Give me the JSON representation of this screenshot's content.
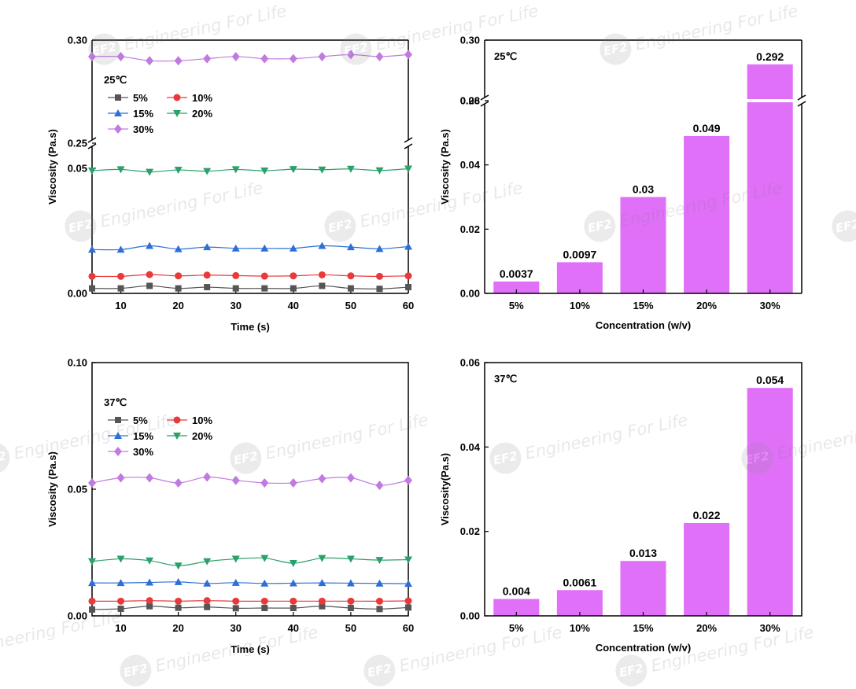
{
  "watermark": {
    "logo": "EF2",
    "text": "Engineering For Life"
  },
  "chart_data": [
    {
      "id": "A",
      "type": "line",
      "label": "25℃",
      "xlabel": "Time (s)",
      "ylabel": "Viscosity (Pa.s)",
      "xlim": [
        5,
        60
      ],
      "x_ticks": [
        "10",
        "20",
        "30",
        "40",
        "50",
        "60"
      ],
      "y_axis_break": {
        "lower_range": [
          0,
          0.06
        ],
        "upper_range": [
          0.25,
          0.3
        ]
      },
      "y_ticks": [
        "0.00",
        "0.05",
        "0.25",
        "0.30"
      ],
      "x": [
        5,
        10,
        15,
        20,
        25,
        30,
        35,
        40,
        45,
        50,
        55,
        60
      ],
      "series": [
        {
          "name": "5%",
          "color": "#555555",
          "marker": "square",
          "values": [
            0.002,
            0.002,
            0.003,
            0.002,
            0.0025,
            0.002,
            0.002,
            0.002,
            0.003,
            0.002,
            0.0018,
            0.0025
          ]
        },
        {
          "name": "10%",
          "color": "#e83a3a",
          "marker": "circle",
          "values": [
            0.0068,
            0.0068,
            0.0075,
            0.007,
            0.0073,
            0.0071,
            0.0069,
            0.007,
            0.0074,
            0.007,
            0.0068,
            0.007
          ]
        },
        {
          "name": "15%",
          "color": "#2d6fd6",
          "marker": "triangle-up",
          "values": [
            0.0175,
            0.0175,
            0.019,
            0.0177,
            0.0185,
            0.018,
            0.018,
            0.018,
            0.019,
            0.0185,
            0.0178,
            0.0187
          ]
        },
        {
          "name": "20%",
          "color": "#2aa06a",
          "marker": "triangle-down",
          "values": [
            0.049,
            0.0495,
            0.0485,
            0.0493,
            0.0488,
            0.0495,
            0.049,
            0.0496,
            0.0494,
            0.0497,
            0.0491,
            0.0498
          ]
        },
        {
          "name": "30%",
          "color": "#c07ae0",
          "marker": "diamond",
          "values": [
            0.292,
            0.292,
            0.29,
            0.29,
            0.291,
            0.292,
            0.291,
            0.291,
            0.292,
            0.293,
            0.292,
            0.293
          ]
        }
      ]
    },
    {
      "id": "B",
      "type": "bar",
      "label": "25℃",
      "xlabel": "Concentration (w/v)",
      "ylabel": "Viscosity (Pa.s)",
      "categories": [
        "5%",
        "10%",
        "15%",
        "20%",
        "30%"
      ],
      "values": [
        0.0037,
        0.0097,
        0.03,
        0.049,
        0.292
      ],
      "value_labels": [
        "0.0037",
        "0.0097",
        "0.03",
        "0.049",
        "0.292"
      ],
      "color": "#e070f8",
      "y_axis_break": {
        "lower_range": [
          0,
          0.06
        ],
        "upper_range": [
          0.28,
          0.3
        ]
      },
      "y_ticks": [
        "0.00",
        "0.02",
        "0.04",
        "0.06",
        "0.28",
        "0.30"
      ]
    },
    {
      "id": "C",
      "type": "line",
      "label": "37℃",
      "xlabel": "Time (s)",
      "ylabel": "Viscosity (Pa.s)",
      "xlim": [
        5,
        60
      ],
      "ylim": [
        0,
        0.1
      ],
      "x_ticks": [
        "10",
        "20",
        "30",
        "40",
        "50",
        "60"
      ],
      "y_ticks": [
        "0.00",
        "0.05",
        "0.10"
      ],
      "x": [
        5,
        10,
        15,
        20,
        25,
        30,
        35,
        40,
        45,
        50,
        55,
        60
      ],
      "series": [
        {
          "name": "5%",
          "color": "#555555",
          "marker": "square",
          "values": [
            0.0025,
            0.0028,
            0.0038,
            0.0032,
            0.0035,
            0.003,
            0.0031,
            0.0031,
            0.0038,
            0.0031,
            0.0027,
            0.0033
          ]
        },
        {
          "name": "10%",
          "color": "#e83a3a",
          "marker": "circle",
          "values": [
            0.0058,
            0.0058,
            0.006,
            0.0058,
            0.006,
            0.0058,
            0.0058,
            0.0058,
            0.0058,
            0.0058,
            0.0058,
            0.0059
          ]
        },
        {
          "name": "15%",
          "color": "#2d6fd6",
          "marker": "triangle-up",
          "values": [
            0.013,
            0.013,
            0.0132,
            0.0134,
            0.0128,
            0.0131,
            0.0128,
            0.0129,
            0.013,
            0.0129,
            0.0128,
            0.0127
          ]
        },
        {
          "name": "20%",
          "color": "#2aa06a",
          "marker": "triangle-down",
          "values": [
            0.0215,
            0.0225,
            0.0218,
            0.0198,
            0.0215,
            0.0225,
            0.0228,
            0.0208,
            0.0228,
            0.0225,
            0.022,
            0.0222
          ]
        },
        {
          "name": "30%",
          "color": "#c07ae0",
          "marker": "diamond",
          "values": [
            0.0525,
            0.0545,
            0.0545,
            0.0525,
            0.0548,
            0.0535,
            0.0525,
            0.0525,
            0.0542,
            0.0545,
            0.0515,
            0.0535
          ]
        }
      ]
    },
    {
      "id": "D",
      "type": "bar",
      "label": "37℃",
      "xlabel": "Concentration (w/v)",
      "ylabel": "Viscosity(Pa.s)",
      "categories": [
        "5%",
        "10%",
        "15%",
        "20%",
        "30%"
      ],
      "values": [
        0.004,
        0.0061,
        0.013,
        0.022,
        0.054
      ],
      "value_labels": [
        "0.004",
        "0.0061",
        "0.013",
        "0.022",
        "0.054"
      ],
      "color": "#e070f8",
      "ylim": [
        0,
        0.06
      ],
      "y_ticks": [
        "0.00",
        "0.02",
        "0.04",
        "0.06"
      ]
    }
  ]
}
